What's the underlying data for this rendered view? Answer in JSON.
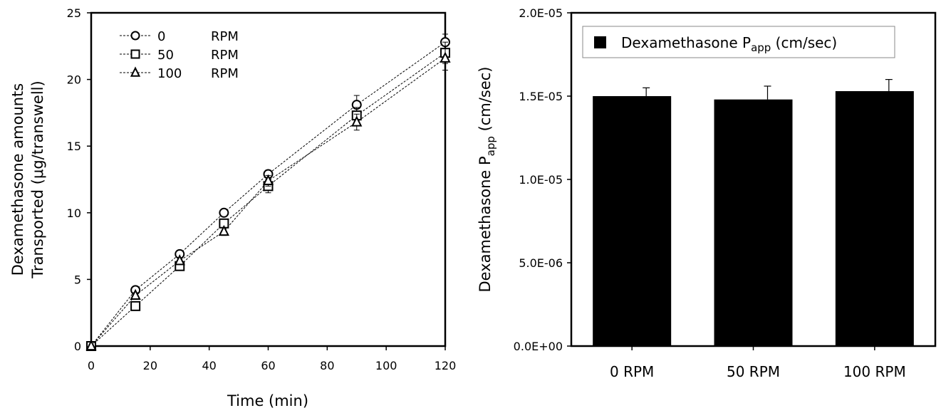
{
  "chart_data": [
    {
      "type": "line",
      "xlabel": "Time (min)",
      "ylabel_line1": "Dexamethasone amounts",
      "ylabel_line2": "Transported (μg/transwell)",
      "xlim": [
        0,
        120
      ],
      "ylim": [
        0,
        25
      ],
      "xticks": [
        0,
        20,
        40,
        60,
        80,
        100,
        120
      ],
      "yticks": [
        0,
        5,
        10,
        15,
        20,
        25
      ],
      "grid": false,
      "legend_position": "top-left",
      "x": [
        0,
        15,
        30,
        45,
        60,
        90,
        120
      ],
      "series": [
        {
          "name": "0",
          "unit": "RPM",
          "marker": "circle",
          "values": [
            0,
            4.2,
            6.9,
            10.0,
            12.9,
            18.1,
            22.8
          ],
          "errors": [
            0,
            0.15,
            0.2,
            0.2,
            0.3,
            0.7,
            0.6
          ]
        },
        {
          "name": "50",
          "unit": "RPM",
          "marker": "square",
          "values": [
            0,
            3.0,
            6.0,
            9.2,
            12.0,
            17.3,
            22.0
          ],
          "errors": [
            0,
            0.2,
            0.2,
            0.3,
            0.5,
            0.6,
            0.8
          ]
        },
        {
          "name": "100",
          "unit": "RPM",
          "marker": "triangle",
          "values": [
            0,
            3.8,
            6.4,
            8.6,
            12.4,
            16.8,
            21.6
          ],
          "errors": [
            0,
            0.2,
            0.2,
            0.3,
            0.4,
            0.6,
            0.9
          ]
        }
      ]
    },
    {
      "type": "bar",
      "categories": [
        "0 RPM",
        "50 RPM",
        "100 RPM"
      ],
      "values": [
        1.5e-05,
        1.48e-05,
        1.53e-05
      ],
      "errors": [
        5e-07,
        8e-07,
        7e-07
      ],
      "ylim": [
        0,
        2e-05
      ],
      "yticks": [
        0,
        5e-06,
        1e-05,
        1.5e-05,
        2e-05
      ],
      "ytick_labels": [
        "0.0E+00",
        "5.0E-06",
        "1.0E-05",
        "1.5E-05",
        "2.0E-05"
      ],
      "ylabel_main": "Dexamethasone P",
      "ylabel_sub": "app",
      "ylabel_tail": " (cm/sec)",
      "legend_main": "Dexamethasone P",
      "legend_sub": "app",
      "legend_tail": " (cm/sec)",
      "legend_position": "top",
      "bar_color": "#000000",
      "grid": false
    }
  ]
}
